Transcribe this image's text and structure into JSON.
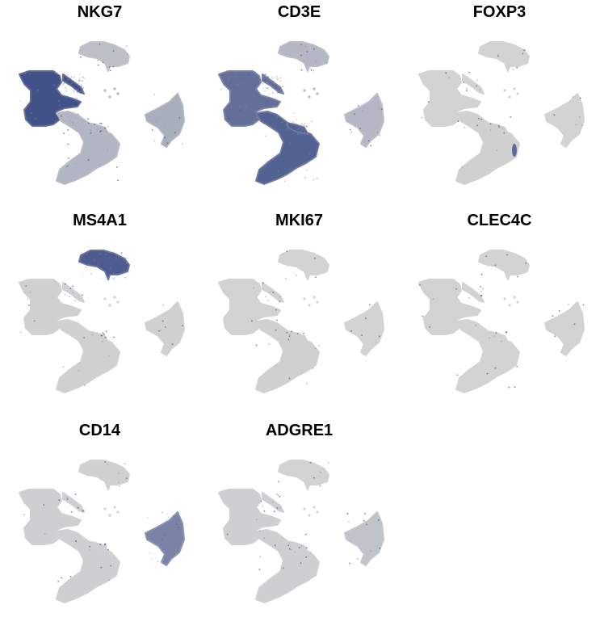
{
  "chart_data": {
    "type": "scatter",
    "description_kind": "umap-feature-plot-grid",
    "base_color": "#d3d3d3",
    "high_color": "#3e4e86",
    "panels": [
      {
        "title": "NKG7",
        "clusters": {
          "b_cell": 0.15,
          "nk_main": 0.97,
          "t_lower": 0.22,
          "monocyte": 0.28,
          "blobs": 0.2
        }
      },
      {
        "title": "CD3E",
        "clusters": {
          "b_cell": 0.2,
          "nk_main": 0.75,
          "t_lower": 0.85,
          "monocyte": 0.2,
          "blobs": 0.2
        }
      },
      {
        "title": "FOXP3",
        "clusters": {
          "b_cell": 0.0,
          "nk_main": 0.0,
          "t_lower": 0.02,
          "monocyte": 0.0,
          "blobs": 0.0,
          "edge_spot": 0.8
        }
      },
      {
        "title": "MS4A1",
        "clusters": {
          "b_cell": 0.9,
          "nk_main": 0.02,
          "t_lower": 0.02,
          "monocyte": 0.02,
          "blobs": 0.0
        }
      },
      {
        "title": "MKI67",
        "clusters": {
          "b_cell": 0.0,
          "nk_main": 0.01,
          "t_lower": 0.02,
          "monocyte": 0.0,
          "blobs": 0.0
        }
      },
      {
        "title": "CLEC4C",
        "clusters": {
          "b_cell": 0.0,
          "nk_main": 0.01,
          "t_lower": 0.0,
          "monocyte": 0.01,
          "blobs": 0.0
        }
      },
      {
        "title": "CD14",
        "clusters": {
          "b_cell": 0.02,
          "nk_main": 0.03,
          "t_lower": 0.03,
          "monocyte": 0.6,
          "blobs": 0.0
        }
      },
      {
        "title": "ADGRE1",
        "clusters": {
          "b_cell": 0.01,
          "nk_main": 0.03,
          "t_lower": 0.03,
          "monocyte": 0.12,
          "blobs": 0.0
        }
      }
    ]
  }
}
